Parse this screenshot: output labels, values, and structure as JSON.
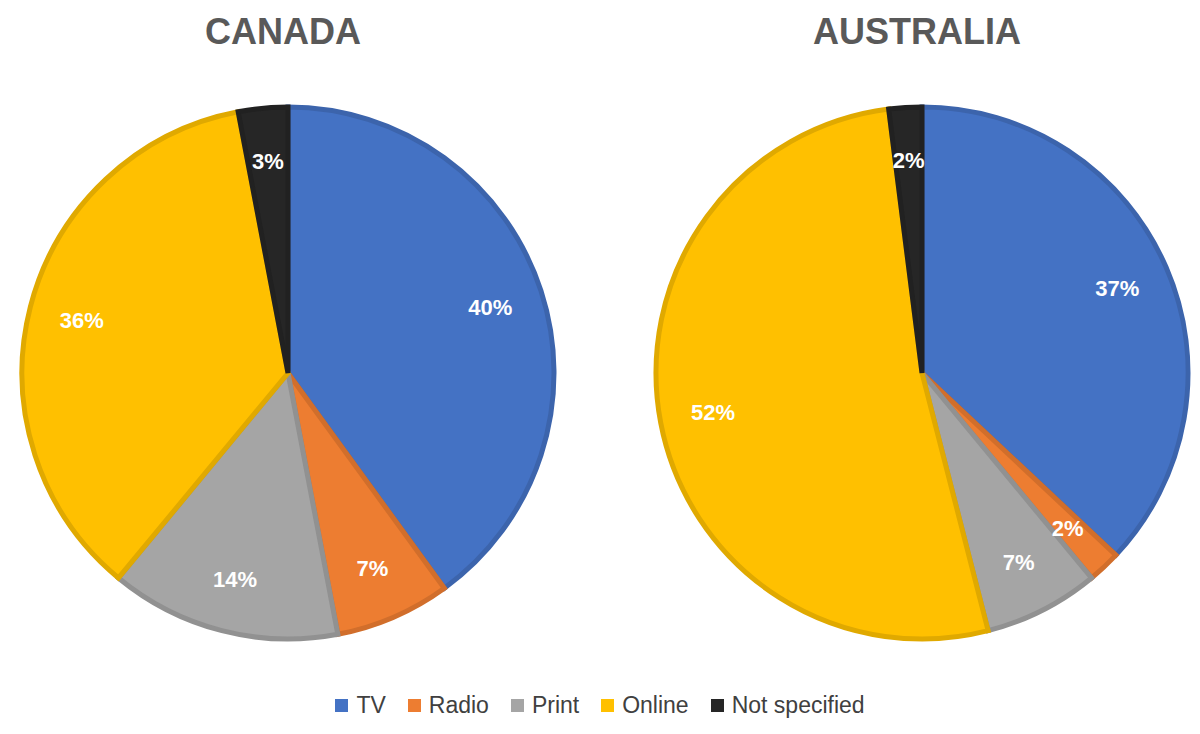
{
  "chart_data": [
    {
      "type": "pie",
      "title": "CANADA",
      "categories": [
        "TV",
        "Radio",
        "Print",
        "Online",
        "Not specified"
      ],
      "values": [
        40,
        7,
        14,
        36,
        3
      ],
      "value_labels": [
        "40%",
        "7%",
        "14%",
        "36%",
        "3%"
      ],
      "colors": [
        "#4472c4",
        "#ed7d31",
        "#a5a5a5",
        "#ffc000",
        "#262626"
      ],
      "data_labels": true,
      "legend": "bottom"
    },
    {
      "type": "pie",
      "title": "AUSTRALIA",
      "categories": [
        "TV",
        "Radio",
        "Print",
        "Online",
        "Not specified"
      ],
      "values": [
        37,
        2,
        7,
        52,
        2
      ],
      "value_labels": [
        "37%",
        "2%",
        "7%",
        "52%",
        "2%"
      ],
      "colors": [
        "#4472c4",
        "#ed7d31",
        "#a5a5a5",
        "#ffc000",
        "#262626"
      ],
      "data_labels": true,
      "legend": "bottom"
    }
  ]
}
